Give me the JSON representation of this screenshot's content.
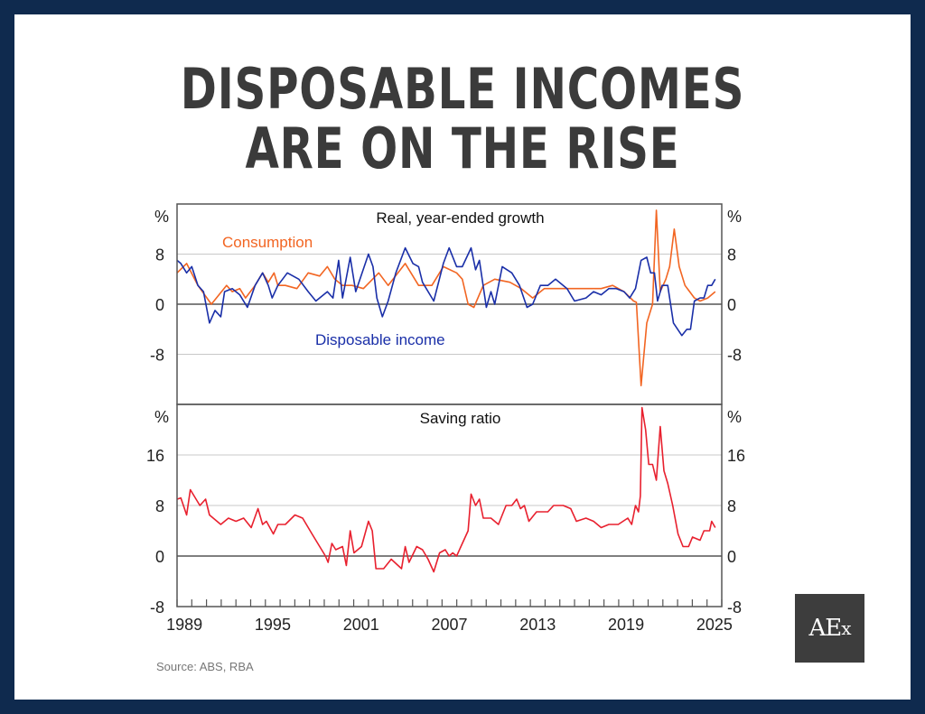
{
  "header": {
    "title_line1": "DISPOSABLE INCOMES",
    "title_line2": "ARE ON THE RISE"
  },
  "source": "Source: ABS, RBA",
  "logo": {
    "text": "AE",
    "suffix": "x"
  },
  "colors": {
    "frame": "#0f2a4e",
    "income": "#1a2fa8",
    "consumption": "#f26522",
    "saving": "#e8202e",
    "logo_bg": "#3d3d3d"
  },
  "chart_data": [
    {
      "type": "line",
      "title": "Real, year-ended growth",
      "unit_label": "%",
      "ylim": [
        -16,
        16
      ],
      "yticks": [
        8,
        0,
        -8
      ],
      "xlim": [
        1989,
        2026
      ],
      "grid": true,
      "series": [
        {
          "name": "Consumption",
          "color": "#f26522",
          "points": [
            [
              1989.0,
              5
            ],
            [
              1989.65,
              6.5
            ],
            [
              1990.42,
              3
            ],
            [
              1991.33,
              0
            ],
            [
              1992.36,
              3
            ],
            [
              1992.75,
              2
            ],
            [
              1993.26,
              2.5
            ],
            [
              1993.65,
              1
            ],
            [
              1994.3,
              3
            ],
            [
              1994.81,
              5
            ],
            [
              1995.2,
              3.5
            ],
            [
              1995.59,
              5
            ],
            [
              1995.85,
              3
            ],
            [
              1996.36,
              3
            ],
            [
              1997.14,
              2.5
            ],
            [
              1997.91,
              5
            ],
            [
              1998.69,
              4.5
            ],
            [
              1999.21,
              6
            ],
            [
              1999.72,
              4
            ],
            [
              2000.24,
              3
            ],
            [
              2000.89,
              3
            ],
            [
              2001.66,
              2.5
            ],
            [
              2002.7,
              5
            ],
            [
              2003.34,
              3
            ],
            [
              2004.5,
              6.5
            ],
            [
              2005.41,
              3
            ],
            [
              2006.31,
              3
            ],
            [
              2007.09,
              6
            ],
            [
              2007.99,
              5
            ],
            [
              2008.38,
              4
            ],
            [
              2008.77,
              0
            ],
            [
              2009.16,
              -0.5
            ],
            [
              2009.8,
              3
            ],
            [
              2010.58,
              4
            ],
            [
              2011.61,
              3.5
            ],
            [
              2012.38,
              2.5
            ],
            [
              2013.16,
              1
            ],
            [
              2013.94,
              2.5
            ],
            [
              2015.74,
              2.5
            ],
            [
              2017.81,
              2.5
            ],
            [
              2018.59,
              3
            ],
            [
              2019.36,
              2
            ],
            [
              2020.01,
              0.5
            ],
            [
              2020.2,
              0.3
            ],
            [
              2020.52,
              -13
            ],
            [
              2020.91,
              -3
            ],
            [
              2021.3,
              0
            ],
            [
              2021.56,
              15
            ],
            [
              2021.82,
              2
            ],
            [
              2022.2,
              4
            ],
            [
              2022.46,
              6
            ],
            [
              2022.77,
              12
            ],
            [
              2023.11,
              6
            ],
            [
              2023.5,
              3
            ],
            [
              2024.14,
              1
            ],
            [
              2024.53,
              0.5
            ],
            [
              2025.05,
              1
            ],
            [
              2025.56,
              2
            ]
          ]
        },
        {
          "name": "Disposable income",
          "color": "#1a2fa8",
          "points": [
            [
              1989.0,
              7
            ],
            [
              1989.26,
              6.5
            ],
            [
              1989.65,
              5
            ],
            [
              1990.0,
              6
            ],
            [
              1990.42,
              3
            ],
            [
              1990.8,
              2
            ],
            [
              1991.2,
              -3
            ],
            [
              1991.58,
              -1
            ],
            [
              1991.97,
              -2
            ],
            [
              1992.23,
              2
            ],
            [
              1992.75,
              2.5
            ],
            [
              1993.26,
              1.5
            ],
            [
              1993.78,
              -0.5
            ],
            [
              1994.3,
              3
            ],
            [
              1994.81,
              5
            ],
            [
              1995.2,
              3
            ],
            [
              1995.46,
              1
            ],
            [
              1995.85,
              3
            ],
            [
              1996.49,
              5
            ],
            [
              1997.27,
              4
            ],
            [
              1997.91,
              2
            ],
            [
              1998.43,
              0.5
            ],
            [
              1999.21,
              2
            ],
            [
              1999.59,
              1
            ],
            [
              1999.98,
              7
            ],
            [
              2000.24,
              1
            ],
            [
              2000.76,
              7.5
            ],
            [
              2001.14,
              2
            ],
            [
              2002.0,
              8
            ],
            [
              2002.31,
              6
            ],
            [
              2002.57,
              1
            ],
            [
              2002.95,
              -2
            ],
            [
              2003.34,
              0.5
            ],
            [
              2003.86,
              5
            ],
            [
              2004.5,
              9
            ],
            [
              2005.02,
              6.5
            ],
            [
              2005.41,
              6
            ],
            [
              2005.67,
              3.5
            ],
            [
              2006.44,
              0.5
            ],
            [
              2007.09,
              6.5
            ],
            [
              2007.48,
              9
            ],
            [
              2007.99,
              6
            ],
            [
              2008.38,
              6
            ],
            [
              2008.97,
              9
            ],
            [
              2009.28,
              5.5
            ],
            [
              2009.54,
              7
            ],
            [
              2010.01,
              -0.5
            ],
            [
              2010.32,
              2
            ],
            [
              2010.58,
              0
            ],
            [
              2011.09,
              6
            ],
            [
              2011.74,
              5
            ],
            [
              2012.26,
              3
            ],
            [
              2012.77,
              -0.5
            ],
            [
              2013.16,
              0
            ],
            [
              2013.68,
              3
            ],
            [
              2014.19,
              3
            ],
            [
              2014.71,
              4
            ],
            [
              2015.49,
              2.5
            ],
            [
              2016.0,
              0.5
            ],
            [
              2016.78,
              1
            ],
            [
              2017.29,
              2
            ],
            [
              2017.81,
              1.5
            ],
            [
              2018.33,
              2.5
            ],
            [
              2018.84,
              2.5
            ],
            [
              2019.36,
              2
            ],
            [
              2019.75,
              1
            ],
            [
              2020.14,
              2.5
            ],
            [
              2020.52,
              7
            ],
            [
              2020.91,
              7.5
            ],
            [
              2021.17,
              5
            ],
            [
              2021.43,
              5
            ],
            [
              2021.64,
              0.5
            ],
            [
              2021.95,
              3
            ],
            [
              2022.33,
              3
            ],
            [
              2022.72,
              -3
            ],
            [
              2023.29,
              -5
            ],
            [
              2023.63,
              -4
            ],
            [
              2023.88,
              -4
            ],
            [
              2024.14,
              0.5
            ],
            [
              2024.53,
              1
            ],
            [
              2024.79,
              1
            ],
            [
              2025.05,
              3
            ],
            [
              2025.31,
              3
            ],
            [
              2025.56,
              4
            ]
          ]
        }
      ],
      "labels": {
        "consumption": "Consumption",
        "income": "Disposable income"
      }
    },
    {
      "type": "line",
      "title": "Saving ratio",
      "unit_label": "%",
      "ylim": [
        -8,
        24
      ],
      "yticks": [
        16,
        8,
        0,
        -8
      ],
      "xlim": [
        1989,
        2026
      ],
      "xticks": [
        "1989",
        "1995",
        "2001",
        "2007",
        "2013",
        "2019",
        "2025"
      ],
      "grid": true,
      "series": [
        {
          "name": "Saving ratio",
          "color": "#e8202e",
          "points": [
            [
              1989.0,
              9
            ],
            [
              1989.26,
              9.2
            ],
            [
              1989.65,
              6.5
            ],
            [
              1989.9,
              10.5
            ],
            [
              1990.55,
              8
            ],
            [
              1990.94,
              9
            ],
            [
              1991.2,
              6.5
            ],
            [
              1991.97,
              5
            ],
            [
              1992.49,
              6
            ],
            [
              1993.0,
              5.5
            ],
            [
              1993.52,
              6
            ],
            [
              1994.04,
              4.5
            ],
            [
              1994.5,
              7.5
            ],
            [
              1994.81,
              5
            ],
            [
              1995.07,
              5.5
            ],
            [
              1995.54,
              3.5
            ],
            [
              1995.85,
              5
            ],
            [
              1996.36,
              5
            ],
            [
              1997.01,
              6.5
            ],
            [
              1997.53,
              6
            ],
            [
              1998.17,
              3.5
            ],
            [
              1998.69,
              1.5
            ],
            [
              1999.08,
              0
            ],
            [
              1999.26,
              -1
            ],
            [
              1999.52,
              2
            ],
            [
              1999.78,
              1
            ],
            [
              2000.24,
              1.5
            ],
            [
              2000.5,
              -1.5
            ],
            [
              2000.76,
              4
            ],
            [
              2001.02,
              0.5
            ],
            [
              2001.53,
              1.5
            ],
            [
              2002.0,
              5.5
            ],
            [
              2002.26,
              4
            ],
            [
              2002.51,
              -2
            ],
            [
              2003.03,
              -2
            ],
            [
              2003.55,
              -0.5
            ],
            [
              2004.25,
              -2
            ],
            [
              2004.5,
              1.5
            ],
            [
              2004.76,
              -1
            ],
            [
              2005.28,
              1.5
            ],
            [
              2005.67,
              1
            ],
            [
              2006.05,
              -0.5
            ],
            [
              2006.44,
              -2.5
            ],
            [
              2006.83,
              0.5
            ],
            [
              2007.22,
              1
            ],
            [
              2007.48,
              0
            ],
            [
              2007.73,
              0.5
            ],
            [
              2007.99,
              0
            ],
            [
              2008.77,
              4
            ],
            [
              2008.97,
              9.8
            ],
            [
              2009.28,
              8
            ],
            [
              2009.54,
              9
            ],
            [
              2009.8,
              6
            ],
            [
              2010.32,
              6
            ],
            [
              2010.83,
              5
            ],
            [
              2011.35,
              8
            ],
            [
              2011.74,
              8
            ],
            [
              2012.07,
              9
            ],
            [
              2012.33,
              7.5
            ],
            [
              2012.59,
              8
            ],
            [
              2012.9,
              5.5
            ],
            [
              2013.42,
              7
            ],
            [
              2014.19,
              7
            ],
            [
              2014.58,
              8
            ],
            [
              2015.23,
              8
            ],
            [
              2015.74,
              7.5
            ],
            [
              2016.13,
              5.5
            ],
            [
              2016.78,
              6
            ],
            [
              2017.29,
              5.5
            ],
            [
              2017.81,
              4.5
            ],
            [
              2018.33,
              5
            ],
            [
              2018.97,
              5
            ],
            [
              2019.62,
              6
            ],
            [
              2019.88,
              5
            ],
            [
              2020.14,
              8
            ],
            [
              2020.34,
              7
            ],
            [
              2020.47,
              9.5
            ],
            [
              2020.58,
              23.5
            ],
            [
              2020.83,
              20
            ],
            [
              2021.04,
              14.5
            ],
            [
              2021.3,
              14.5
            ],
            [
              2021.56,
              12
            ],
            [
              2021.82,
              20.5
            ],
            [
              2022.07,
              13.5
            ],
            [
              2022.33,
              11.5
            ],
            [
              2022.67,
              8
            ],
            [
              2023.03,
              3.5
            ],
            [
              2023.37,
              1.5
            ],
            [
              2023.75,
              1.5
            ],
            [
              2024.01,
              3
            ],
            [
              2024.53,
              2.5
            ],
            [
              2024.79,
              4
            ],
            [
              2025.18,
              4
            ],
            [
              2025.31,
              5.5
            ],
            [
              2025.56,
              4.5
            ]
          ]
        }
      ]
    }
  ]
}
